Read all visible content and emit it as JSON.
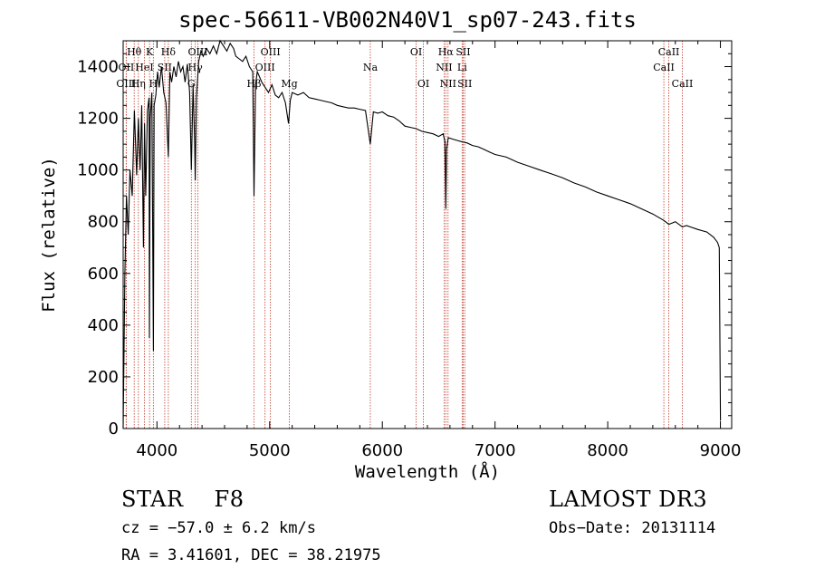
{
  "title": "spec-56611-VB002N40V1_sp07-243.fits",
  "info": {
    "object_class": "STAR",
    "subclass": "F8",
    "survey": "LAMOST DR3",
    "cz": "cz = −57.0 ± 6.2 km/s",
    "obs_date": "Obs−Date: 20131114",
    "radec": "RA =   3.41601, DEC =  38.21975"
  },
  "colors": {
    "line_marker": "#c0392b",
    "spectrum": "#000000"
  },
  "chart_data": {
    "type": "line",
    "title": "spec-56611-VB002N40V1_sp07-243.fits",
    "xlabel": "Wavelength (Å)",
    "ylabel": "Flux (relative)",
    "xlim": [
      3700,
      9100
    ],
    "ylim": [
      0,
      1500
    ],
    "xticks": [
      4000,
      5000,
      6000,
      7000,
      8000,
      9000
    ],
    "yticks": [
      0,
      200,
      400,
      600,
      800,
      1000,
      1200,
      1400
    ],
    "grid": false,
    "series": [
      {
        "name": "flux",
        "x": [
          3700,
          3715,
          3730,
          3745,
          3760,
          3780,
          3800,
          3820,
          3835,
          3850,
          3865,
          3880,
          3890,
          3900,
          3915,
          3930,
          3933,
          3940,
          3955,
          3968,
          3975,
          3990,
          4005,
          4020,
          4040,
          4060,
          4080,
          4101,
          4115,
          4130,
          4150,
          4170,
          4190,
          4210,
          4230,
          4250,
          4270,
          4290,
          4305,
          4320,
          4335,
          4340,
          4350,
          4370,
          4390,
          4410,
          4440,
          4470,
          4500,
          4530,
          4560,
          4590,
          4620,
          4650,
          4680,
          4700,
          4730,
          4760,
          4790,
          4820,
          4850,
          4861,
          4875,
          4890,
          4910,
          4930,
          4960,
          4990,
          5020,
          5050,
          5080,
          5110,
          5140,
          5167,
          5183,
          5200,
          5250,
          5300,
          5350,
          5400,
          5450,
          5500,
          5550,
          5600,
          5650,
          5700,
          5750,
          5800,
          5850,
          5893,
          5920,
          5960,
          6000,
          6050,
          6100,
          6150,
          6200,
          6250,
          6300,
          6350,
          6400,
          6450,
          6500,
          6540,
          6555,
          6563,
          6570,
          6585,
          6620,
          6660,
          6700,
          6750,
          6800,
          6850,
          6900,
          6950,
          7000,
          7100,
          7200,
          7300,
          7400,
          7500,
          7600,
          7700,
          7800,
          7900,
          8000,
          8100,
          8200,
          8300,
          8400,
          8498,
          8542,
          8600,
          8662,
          8700,
          8800,
          8880,
          8940,
          8975,
          8990,
          9000
        ],
        "values": [
          0,
          600,
          900,
          750,
          1000,
          900,
          1230,
          980,
          1200,
          1000,
          1250,
          700,
          1180,
          900,
          1230,
          1280,
          350,
          1200,
          1300,
          300,
          1250,
          1290,
          1380,
          1320,
          1400,
          1300,
          1260,
          1050,
          1380,
          1340,
          1400,
          1360,
          1420,
          1380,
          1400,
          1340,
          1410,
          1300,
          1000,
          1330,
          1100,
          960,
          1280,
          1420,
          1460,
          1440,
          1470,
          1450,
          1480,
          1450,
          1500,
          1480,
          1460,
          1490,
          1470,
          1440,
          1430,
          1420,
          1440,
          1400,
          1380,
          900,
          1330,
          1380,
          1360,
          1340,
          1320,
          1300,
          1330,
          1290,
          1280,
          1300,
          1260,
          1180,
          1270,
          1300,
          1290,
          1300,
          1280,
          1275,
          1270,
          1265,
          1260,
          1250,
          1245,
          1240,
          1240,
          1235,
          1230,
          1100,
          1225,
          1220,
          1225,
          1210,
          1205,
          1190,
          1170,
          1165,
          1160,
          1150,
          1145,
          1140,
          1130,
          1140,
          1110,
          850,
          1080,
          1125,
          1120,
          1115,
          1110,
          1105,
          1095,
          1090,
          1080,
          1070,
          1060,
          1050,
          1030,
          1015,
          1000,
          985,
          970,
          950,
          935,
          915,
          900,
          885,
          870,
          850,
          830,
          805,
          790,
          800,
          780,
          785,
          770,
          760,
          740,
          720,
          700,
          30
        ]
      }
    ],
    "line_markers": [
      {
        "label": "Hθ",
        "x": 3798,
        "row": 1
      },
      {
        "label": "OII",
        "x": 3727,
        "row": 2
      },
      {
        "label": "OIII",
        "x": 3727,
        "row": 3
      },
      {
        "label": "K",
        "x": 3934,
        "row": 1
      },
      {
        "label": "HeI",
        "x": 3889,
        "row": 2
      },
      {
        "label": "Hη",
        "x": 3835,
        "row": 3
      },
      {
        "label": "SII",
        "x": 4069,
        "row": 2
      },
      {
        "label": "H",
        "x": 3968,
        "row": 3
      },
      {
        "label": "Hδ",
        "x": 4101,
        "row": 1
      },
      {
        "label": "OIII",
        "x": 4363,
        "row": 1
      },
      {
        "label": "Hγ",
        "x": 4340,
        "row": 2
      },
      {
        "label": "G",
        "x": 4305,
        "row": 3
      },
      {
        "label": "OIII",
        "x": 5007,
        "row": 1
      },
      {
        "label": "OIII",
        "x": 4959,
        "row": 2
      },
      {
        "label": "Hβ",
        "x": 4861,
        "row": 3
      },
      {
        "label": "Mg",
        "x": 5175,
        "row": 3
      },
      {
        "label": "Na",
        "x": 5893,
        "row": 2
      },
      {
        "label": "OI",
        "x": 6300,
        "row": 1
      },
      {
        "label": "OI",
        "x": 6364,
        "row": 3
      },
      {
        "label": "Hα",
        "x": 6563,
        "row": 1
      },
      {
        "label": "SII",
        "x": 6717,
        "row": 1
      },
      {
        "label": "NII",
        "x": 6548,
        "row": 2
      },
      {
        "label": "Li",
        "x": 6708,
        "row": 2
      },
      {
        "label": "NII",
        "x": 6583,
        "row": 3
      },
      {
        "label": "SII",
        "x": 6731,
        "row": 3
      },
      {
        "label": "CaII",
        "x": 8542,
        "row": 1
      },
      {
        "label": "CaII",
        "x": 8498,
        "row": 2
      },
      {
        "label": "CaII",
        "x": 8662,
        "row": 3
      }
    ]
  }
}
